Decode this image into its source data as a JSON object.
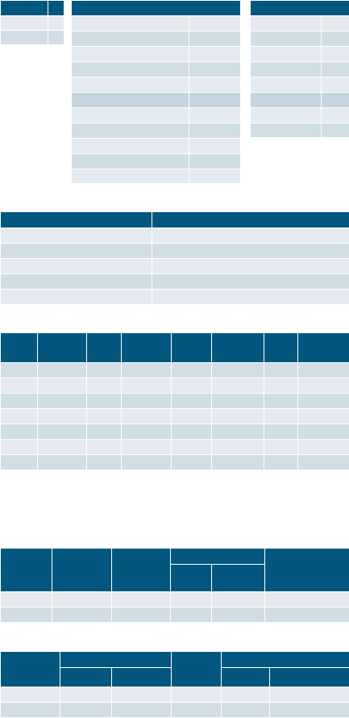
{
  "tables": [
    {
      "id": "t1",
      "headers": [
        "",
        ""
      ],
      "rows": [
        [
          "",
          ""
        ],
        [
          "",
          ""
        ]
      ],
      "shades": [
        "light",
        "mid"
      ]
    },
    {
      "id": "t2",
      "headers": [
        ""
      ],
      "rows": [
        [
          "",
          ""
        ],
        [
          "",
          ""
        ],
        [
          "",
          ""
        ],
        [
          "",
          ""
        ],
        [
          "",
          ""
        ],
        [
          "",
          ""
        ],
        [
          "",
          ""
        ],
        [
          "",
          ""
        ],
        [
          "",
          ""
        ],
        [
          "",
          ""
        ],
        [
          "",
          ""
        ]
      ],
      "shades": [
        "light",
        "mid",
        "light",
        "mid",
        "light",
        "dark",
        "light",
        "mid",
        "light",
        "mid",
        "light"
      ]
    },
    {
      "id": "t3",
      "headers": [
        ""
      ],
      "rows": [
        [
          "",
          ""
        ],
        [
          "",
          ""
        ],
        [
          "",
          ""
        ],
        [
          "",
          ""
        ],
        [
          "",
          ""
        ],
        [
          "",
          ""
        ],
        [
          "",
          ""
        ],
        [
          "",
          ""
        ]
      ],
      "shades": [
        "light",
        "mid",
        "light",
        "mid",
        "light",
        "dark",
        "light",
        "mid"
      ]
    },
    {
      "id": "t4",
      "headers": [
        "",
        ""
      ],
      "rows": [
        [
          "",
          ""
        ],
        [
          "",
          ""
        ],
        [
          "",
          ""
        ],
        [
          "",
          ""
        ],
        [
          "",
          ""
        ],
        [
          "",
          ""
        ]
      ],
      "shades": [
        "light",
        "mid",
        "light",
        "mid",
        "light",
        "mid"
      ]
    },
    {
      "id": "t5",
      "headers": [
        "",
        "",
        "",
        "",
        "",
        "",
        "",
        ""
      ],
      "rows": [
        [
          "",
          "",
          "",
          "",
          "",
          "",
          "",
          ""
        ],
        [
          "",
          "",
          "",
          "",
          "",
          "",
          "",
          ""
        ],
        [
          "",
          "",
          "",
          "",
          "",
          "",
          "",
          ""
        ],
        [
          "",
          "",
          "",
          "",
          "",
          "",
          "",
          ""
        ],
        [
          "",
          "",
          "",
          "",
          "",
          "",
          "",
          ""
        ],
        [
          "",
          "",
          "",
          "",
          "",
          "",
          "",
          ""
        ],
        [
          "",
          "",
          "",
          "",
          "",
          "",
          "",
          ""
        ]
      ],
      "shades": [
        "mid",
        "light",
        "mid",
        "light",
        "mid",
        "light",
        "mid"
      ]
    },
    {
      "id": "t6",
      "headers_top": [
        "",
        "",
        "",
        "",
        ""
      ],
      "headers_sub": [
        "",
        ""
      ],
      "rows": [
        [
          "",
          "",
          "",
          "",
          "",
          ""
        ],
        [
          "",
          "",
          "",
          "",
          "",
          ""
        ]
      ],
      "shades": [
        "light",
        "mid"
      ]
    },
    {
      "id": "t7",
      "headers_top": [
        "",
        "",
        "",
        ""
      ],
      "headers_sub": [
        "",
        "",
        "",
        ""
      ],
      "rows": [
        [
          "",
          "",
          "",
          "",
          "",
          ""
        ],
        [
          "",
          "",
          "",
          "",
          "",
          ""
        ]
      ],
      "shades": [
        "light",
        "mid"
      ]
    }
  ]
}
